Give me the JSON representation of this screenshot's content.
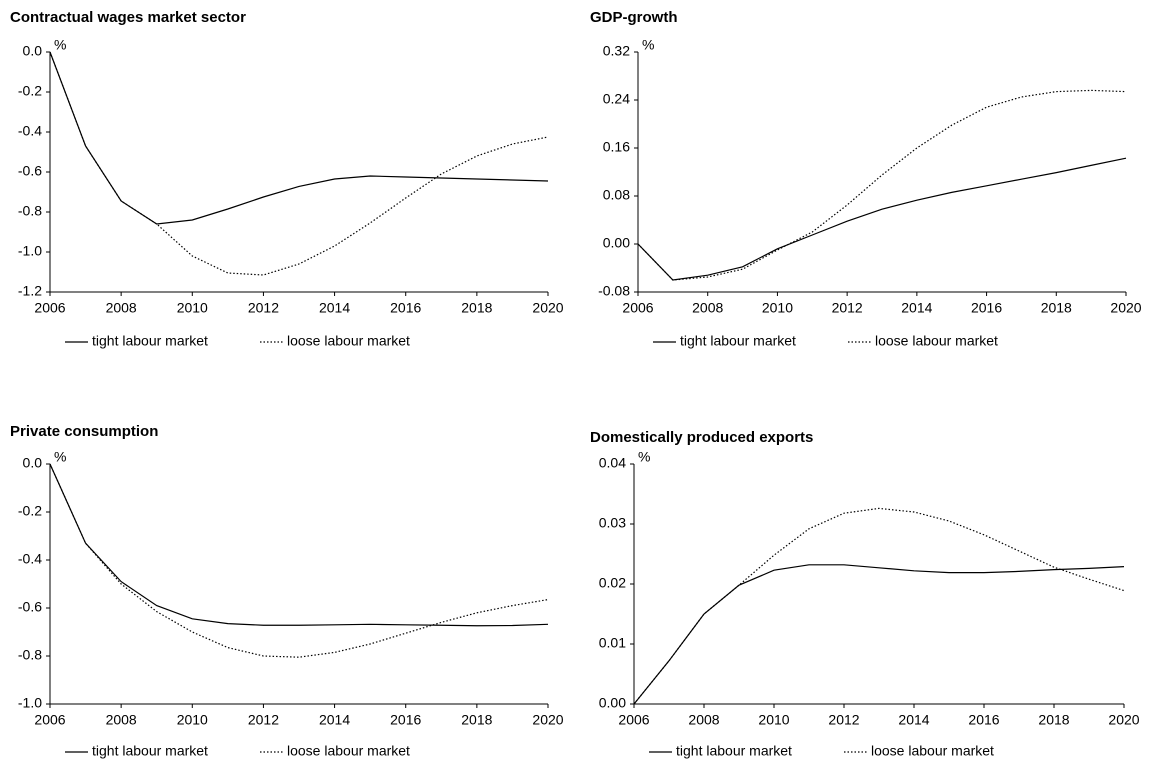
{
  "chart_data": [
    {
      "type": "line",
      "title": "Contractual wages market sector",
      "ylabel": "%",
      "x": [
        2006,
        2007,
        2008,
        2009,
        2010,
        2011,
        2012,
        2013,
        2014,
        2015,
        2016,
        2017,
        2018,
        2019,
        2020
      ],
      "xlim": [
        2006,
        2020
      ],
      "xticks": [
        2006,
        2008,
        2010,
        2012,
        2014,
        2016,
        2018,
        2020
      ],
      "ylim": [
        -1.2,
        0
      ],
      "yticks": [
        -1.2,
        {
          "value": -1,
          "label": "-1.0"
        },
        -0.8,
        -0.6,
        -0.4,
        -0.2,
        {
          "value": 0,
          "label": "0.0"
        }
      ],
      "legend": "bottom",
      "series": [
        {
          "name": "tight labour market",
          "color": "#000000",
          "style": "solid",
          "values": [
            0,
            -0.47,
            -0.745,
            -0.86,
            -0.84,
            -0.785,
            -0.725,
            -0.672,
            -0.635,
            -0.62,
            -0.625,
            -0.63,
            -0.635,
            -0.64,
            -0.645
          ]
        },
        {
          "name": "loose labour market",
          "color": "#000000",
          "style": "dotted",
          "values": [
            0,
            -0.47,
            -0.745,
            -0.86,
            -1.02,
            -1.105,
            -1.115,
            -1.06,
            -0.97,
            -0.855,
            -0.73,
            -0.61,
            -0.52,
            -0.46,
            -0.425
          ]
        }
      ]
    },
    {
      "type": "line",
      "title": "GDP-growth",
      "ylabel": "%",
      "x": [
        2006,
        2007,
        2008,
        2009,
        2010,
        2011,
        2012,
        2013,
        2014,
        2015,
        2016,
        2017,
        2018,
        2019,
        2020
      ],
      "xlim": [
        2006,
        2020
      ],
      "xticks": [
        2006,
        2008,
        2010,
        2012,
        2014,
        2016,
        2018,
        2020
      ],
      "ylim": [
        -0.08,
        0.32
      ],
      "yticks": [
        -0.08,
        {
          "value": 0,
          "label": "0.00"
        },
        0.08,
        0.16,
        0.24,
        0.32
      ],
      "legend": "bottom",
      "series": [
        {
          "name": "tight labour market",
          "color": "#000000",
          "style": "solid",
          "values": [
            0,
            -0.06,
            -0.052,
            -0.038,
            -0.008,
            0.015,
            0.038,
            0.058,
            0.073,
            0.086,
            0.097,
            0.108,
            0.119,
            0.131,
            0.143
          ]
        },
        {
          "name": "loose labour market",
          "color": "#000000",
          "style": "dotted",
          "values": [
            0,
            -0.06,
            -0.055,
            -0.042,
            -0.01,
            0.02,
            0.065,
            0.115,
            0.16,
            0.198,
            0.228,
            0.245,
            0.254,
            0.256,
            0.254
          ]
        }
      ]
    },
    {
      "type": "line",
      "title": "Private consumption",
      "ylabel": "%",
      "x": [
        2006,
        2007,
        2008,
        2009,
        2010,
        2011,
        2012,
        2013,
        2014,
        2015,
        2016,
        2017,
        2018,
        2019,
        2020
      ],
      "xlim": [
        2006,
        2020
      ],
      "xticks": [
        2006,
        2008,
        2010,
        2012,
        2014,
        2016,
        2018,
        2020
      ],
      "ylim": [
        -1,
        0
      ],
      "yticks": [
        {
          "value": -1,
          "label": "-1.0"
        },
        -0.8,
        -0.6,
        -0.4,
        -0.2,
        {
          "value": 0,
          "label": "0.0"
        }
      ],
      "legend": "bottom",
      "series": [
        {
          "name": "tight labour market",
          "color": "#000000",
          "style": "solid",
          "values": [
            0,
            -0.33,
            -0.49,
            -0.59,
            -0.645,
            -0.665,
            -0.672,
            -0.672,
            -0.67,
            -0.668,
            -0.67,
            -0.672,
            -0.674,
            -0.673,
            -0.668
          ]
        },
        {
          "name": "loose labour market",
          "color": "#000000",
          "style": "dotted",
          "values": [
            0,
            -0.33,
            -0.5,
            -0.615,
            -0.7,
            -0.765,
            -0.8,
            -0.805,
            -0.785,
            -0.75,
            -0.705,
            -0.66,
            -0.62,
            -0.59,
            -0.565
          ]
        }
      ]
    },
    {
      "type": "line",
      "title": "Domestically produced exports",
      "ylabel": "%",
      "x": [
        2006,
        2007,
        2008,
        2009,
        2010,
        2011,
        2012,
        2013,
        2014,
        2015,
        2016,
        2017,
        2018,
        2019,
        2020
      ],
      "xlim": [
        2006,
        2020
      ],
      "xticks": [
        2006,
        2008,
        2010,
        2012,
        2014,
        2016,
        2018,
        2020
      ],
      "ylim": [
        0,
        0.04
      ],
      "yticks": [
        {
          "value": 0,
          "label": "0.00"
        },
        0.01,
        0.02,
        0.03,
        0.04
      ],
      "legend": "bottom",
      "series": [
        {
          "name": "tight labour market",
          "color": "#000000",
          "style": "solid",
          "values": [
            0,
            0.0072,
            0.015,
            0.0198,
            0.0223,
            0.0232,
            0.0232,
            0.0227,
            0.0222,
            0.0219,
            0.0219,
            0.0221,
            0.0224,
            0.0226,
            0.0229
          ]
        },
        {
          "name": "loose labour market",
          "color": "#000000",
          "style": "dotted",
          "values": [
            0,
            0.0072,
            0.015,
            0.0198,
            0.0248,
            0.0292,
            0.0318,
            0.0326,
            0.032,
            0.0305,
            0.0282,
            0.0255,
            0.0228,
            0.0208,
            0.0189
          ]
        }
      ]
    }
  ]
}
